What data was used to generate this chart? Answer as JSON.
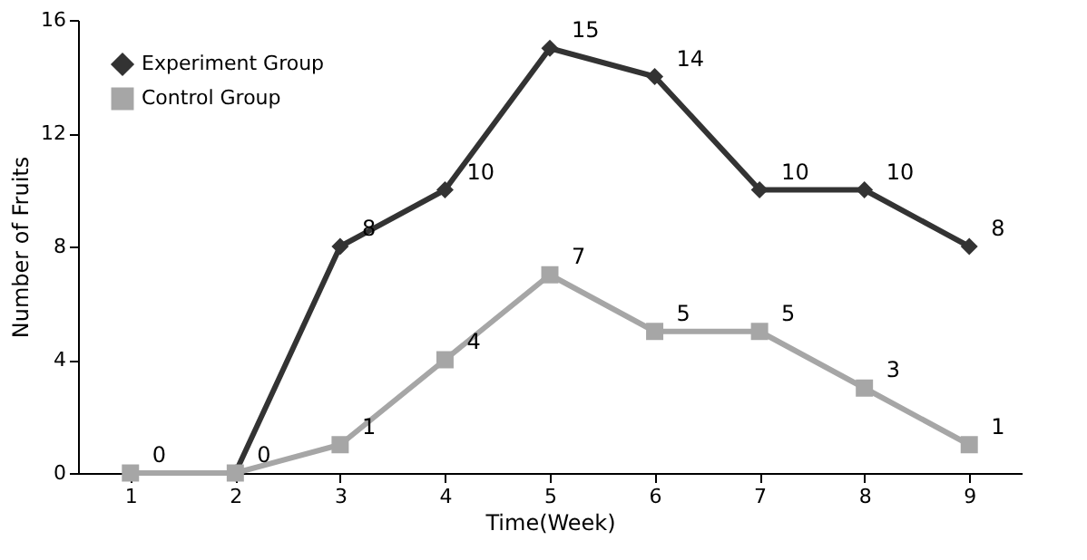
{
  "chart_data": {
    "type": "line",
    "xlabel": "Time(Week)",
    "ylabel": "Number of Fruits",
    "categories": [
      "1",
      "2",
      "3",
      "4",
      "5",
      "6",
      "7",
      "8",
      "9"
    ],
    "series": [
      {
        "name": "Experiment Group",
        "color": "#333333",
        "marker": "diamond",
        "values": [
          null,
          0,
          8,
          10,
          15,
          14,
          10,
          10,
          8
        ],
        "value_labels": [
          null,
          null,
          "8",
          "10",
          "15",
          "14",
          "10",
          "10",
          "8"
        ]
      },
      {
        "name": "Control Group",
        "color": "#a6a6a6",
        "marker": "square",
        "values": [
          0,
          0,
          1,
          4,
          7,
          5,
          5,
          3,
          1
        ],
        "value_labels": [
          "0",
          "0",
          "1",
          "4",
          "7",
          "5",
          "5",
          "3",
          "1"
        ]
      }
    ],
    "ylim": [
      0,
      16
    ],
    "yticks": [
      0,
      4,
      8,
      12,
      16
    ],
    "grid": false,
    "legend": "top left",
    "line_style": "solid"
  }
}
